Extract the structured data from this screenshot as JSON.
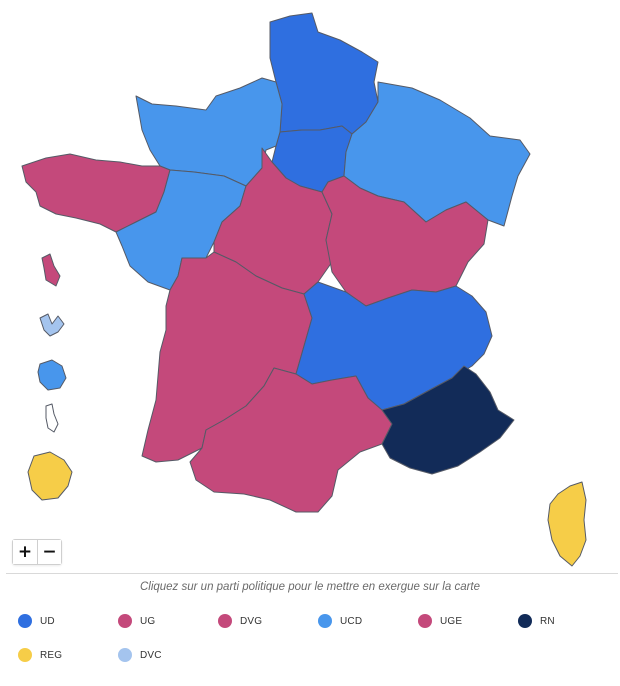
{
  "colors": {
    "UD": "#2f6fe0",
    "UG": "#c4497b",
    "DVG": "#c4497b",
    "UCD": "#4896ec",
    "UGE": "#c4497b",
    "RN": "#122b58",
    "REG": "#f6cd48",
    "DVC": "#a4c4ee"
  },
  "map": {
    "regions": [
      {
        "name": "hauts-de-france",
        "party": "UD"
      },
      {
        "name": "ile-de-france",
        "party": "UD"
      },
      {
        "name": "normandie",
        "party": "UCD"
      },
      {
        "name": "grand-est",
        "party": "UCD"
      },
      {
        "name": "bretagne",
        "party": "UG"
      },
      {
        "name": "pays-de-la-loire",
        "party": "UCD"
      },
      {
        "name": "centre-val-de-loire",
        "party": "UG"
      },
      {
        "name": "bourgogne-franche-comte",
        "party": "UG"
      },
      {
        "name": "nouvelle-aquitaine",
        "party": "UG"
      },
      {
        "name": "auvergne-rhone-alpes",
        "party": "UD"
      },
      {
        "name": "occitanie",
        "party": "UG"
      },
      {
        "name": "provence-alpes-cote-d-azur",
        "party": "RN"
      },
      {
        "name": "corse",
        "party": "REG"
      },
      {
        "name": "martinique",
        "party": "UG"
      },
      {
        "name": "guadeloupe",
        "party": "DVC"
      },
      {
        "name": "la-reunion",
        "party": "UCD"
      },
      {
        "name": "mayotte",
        "party": "none"
      },
      {
        "name": "guyane",
        "party": "REG"
      }
    ]
  },
  "zoom": {
    "in_label": "+",
    "out_label": "−"
  },
  "hint": "Cliquez sur un parti politique pour le mettre en exergue sur la carte",
  "legend": [
    {
      "code": "UD",
      "label": "UD"
    },
    {
      "code": "UG",
      "label": "UG"
    },
    {
      "code": "DVG",
      "label": "DVG"
    },
    {
      "code": "UCD",
      "label": "UCD"
    },
    {
      "code": "UGE",
      "label": "UGE"
    },
    {
      "code": "RN",
      "label": "RN"
    },
    {
      "code": "REG",
      "label": "REG"
    },
    {
      "code": "DVC",
      "label": "DVC"
    }
  ]
}
